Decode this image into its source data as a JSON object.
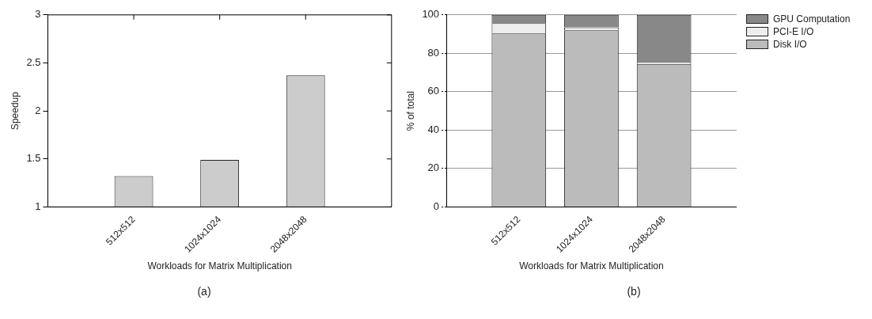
{
  "chart_data": [
    {
      "type": "bar",
      "xlabel": "Workloads for Matrix Multiplication",
      "ylabel": "Speedup",
      "categories": [
        null,
        "512x512",
        "1024x1024",
        "2048x2048",
        null
      ],
      "values": [
        null,
        1.32,
        1.49,
        2.37,
        null
      ],
      "color": "#cccccc",
      "ylim": [
        1,
        3
      ],
      "yticks": [
        1,
        1.5,
        2,
        2.5,
        3
      ],
      "grid": false,
      "annotations": [
        "(a)"
      ]
    },
    {
      "type": "bar",
      "xlabel": "Workloads for Matrix Multiplication",
      "ylabel": "% of total",
      "categories": [
        null,
        "512x512",
        "1024x1024",
        "2048x2048",
        null
      ],
      "stacked": true,
      "series": [
        {
          "name": "Disk I/O",
          "color": "#bbbbbb",
          "values": [
            null,
            90.3,
            92,
            74.5,
            null
          ]
        },
        {
          "name": "PCI-E I/O",
          "color": "#eeeeee",
          "values": [
            null,
            5.4,
            1.5,
            1,
            null
          ]
        },
        {
          "name": "GPU Computation",
          "color": "#888888",
          "values": [
            null,
            4.3,
            6.5,
            24.5,
            null
          ]
        }
      ],
      "ylim": [
        0,
        100
      ],
      "yticks": [
        0,
        20,
        40,
        60,
        80,
        100
      ],
      "grid": "y",
      "legend": "top right",
      "annotations": [
        "(b)"
      ]
    }
  ]
}
